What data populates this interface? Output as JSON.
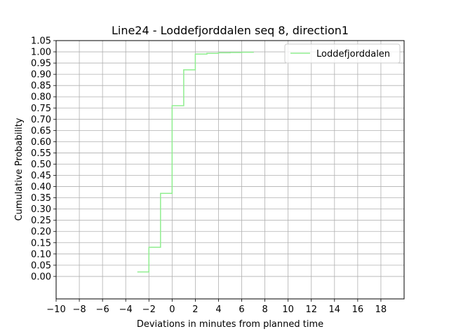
{
  "chart_data": {
    "type": "line",
    "step": true,
    "title": "Line24 - Loddefjorddalen seq 8, direction1",
    "xlabel": "Deviations in minutes from planned time",
    "ylabel": "Cumulative Probability",
    "xlim": [
      -10,
      20
    ],
    "ylim": [
      -0.1,
      1.05
    ],
    "xticks": [
      -10,
      -8,
      -6,
      -4,
      -2,
      0,
      2,
      4,
      6,
      8,
      10,
      12,
      14,
      16,
      18
    ],
    "xtick_labels": [
      "−10",
      "−8",
      "−6",
      "−4",
      "−2",
      "0",
      "2",
      "4",
      "6",
      "8",
      "10",
      "12",
      "14",
      "16",
      "18"
    ],
    "yticks": [
      0.0,
      0.05,
      0.1,
      0.15,
      0.2,
      0.25,
      0.3,
      0.35,
      0.4,
      0.45,
      0.5,
      0.55,
      0.6,
      0.65,
      0.7,
      0.75,
      0.8,
      0.85,
      0.9,
      0.95,
      1.0,
      1.05
    ],
    "ytick_labels": [
      "0.00",
      "0.05",
      "0.10",
      "0.15",
      "0.20",
      "0.25",
      "0.30",
      "0.35",
      "0.40",
      "0.45",
      "0.50",
      "0.55",
      "0.60",
      "0.65",
      "0.70",
      "0.75",
      "0.80",
      "0.85",
      "0.90",
      "0.95",
      "1.00",
      "1.05"
    ],
    "grid": true,
    "legend_position": "top-right",
    "series": [
      {
        "name": "Loddefjorddalen",
        "color": "#90ee90",
        "x": [
          -3,
          -2,
          -1,
          0,
          1,
          2,
          3,
          4,
          5,
          6,
          7
        ],
        "y": [
          0.02,
          0.13,
          0.37,
          0.76,
          0.92,
          0.99,
          0.993,
          0.996,
          0.997,
          0.998,
          0.999
        ]
      }
    ]
  }
}
